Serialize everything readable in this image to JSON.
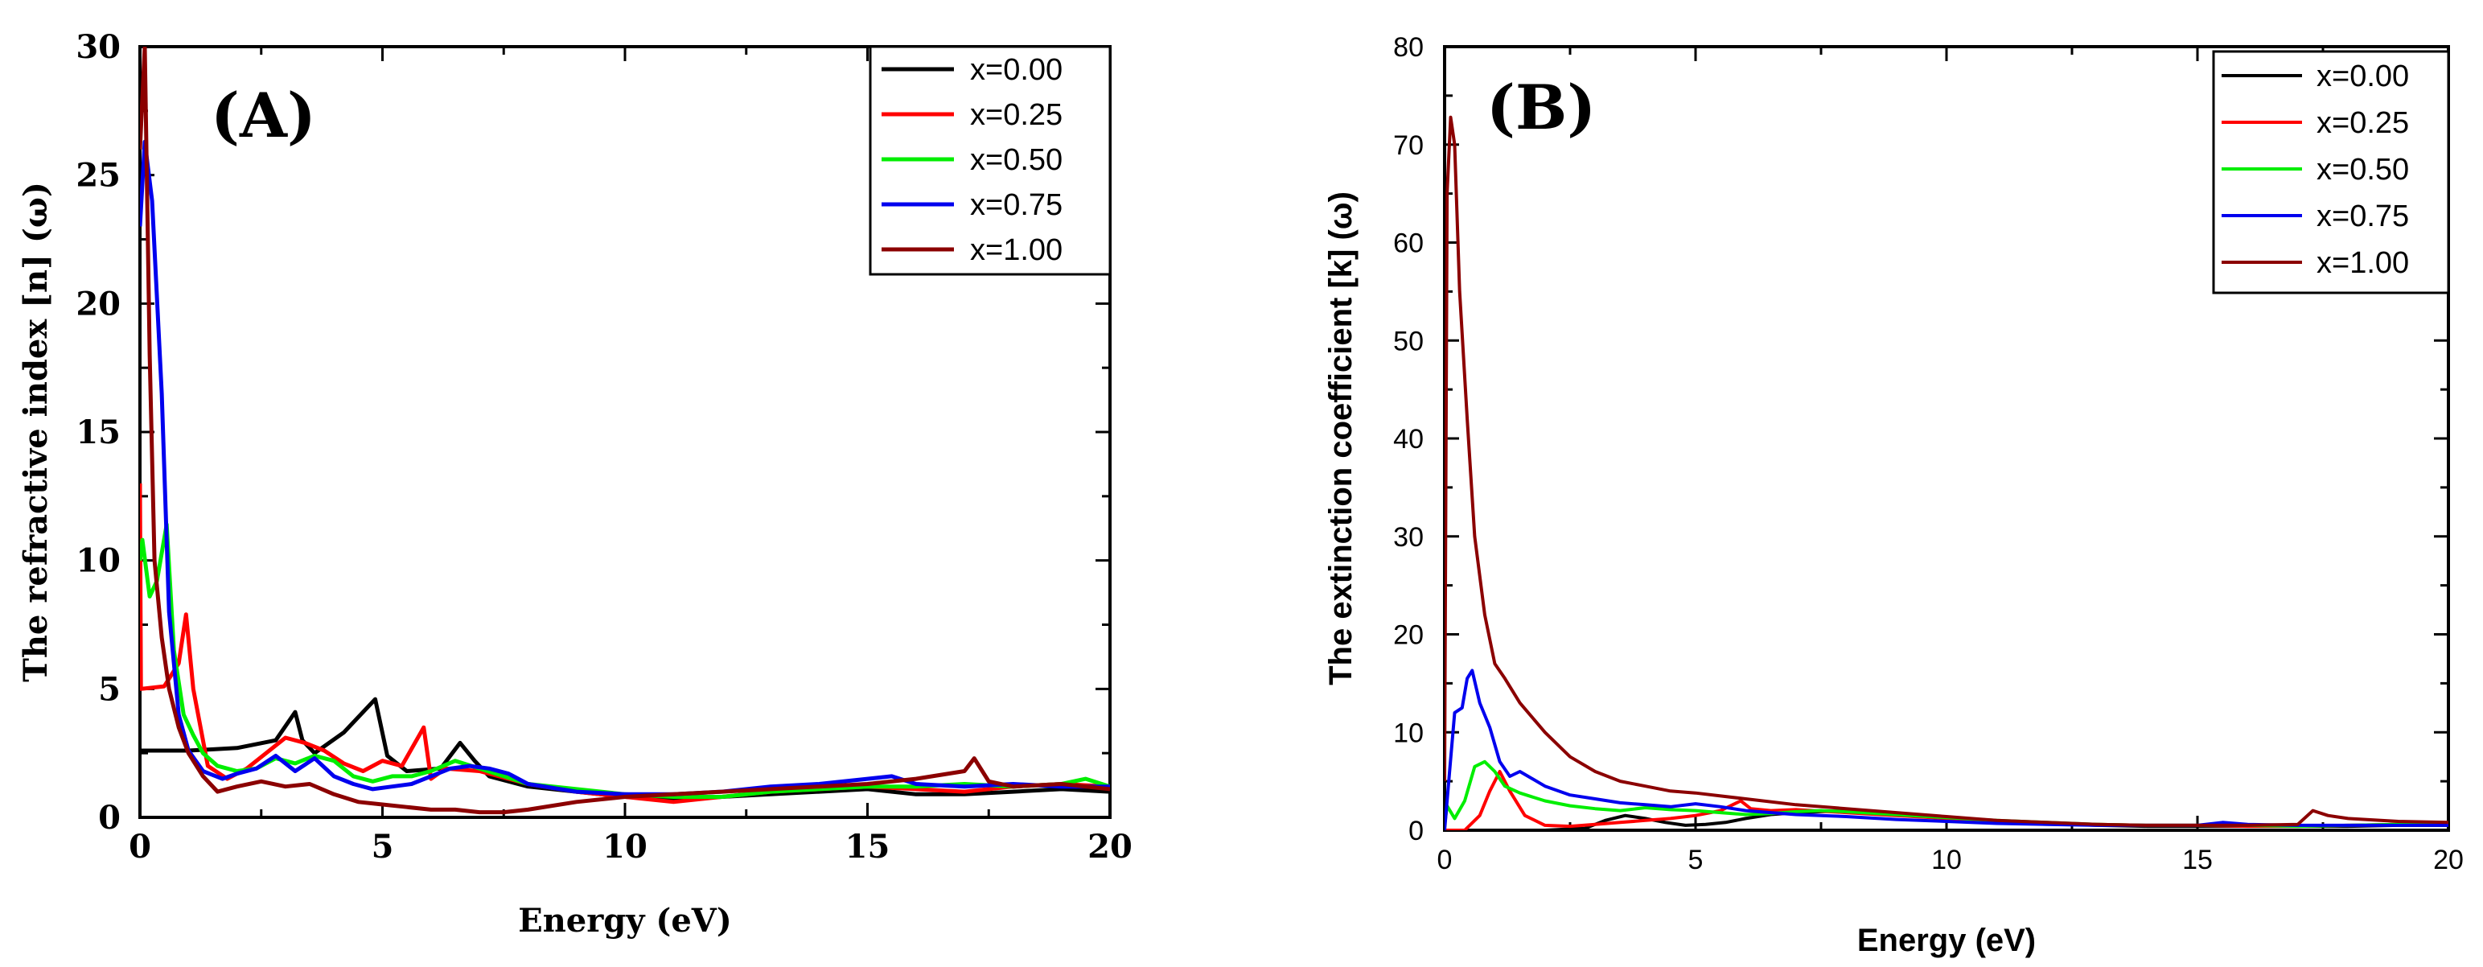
{
  "chart_data": [
    {
      "type": "line",
      "panel_label": "(A)",
      "title": "",
      "xlabel": "Energy (eV)",
      "ylabel": "The refractive index [n] (ω)",
      "xlim": [
        0,
        20
      ],
      "ylim": [
        0,
        30
      ],
      "xticks": [
        0,
        5,
        10,
        15,
        20
      ],
      "yticks": [
        0,
        5,
        10,
        15,
        20,
        25,
        30
      ],
      "legend_position": "top-right",
      "grid": false,
      "series": [
        {
          "name": "x=0.00",
          "color": "#000000",
          "x": [
            0,
            1,
            2,
            2.8,
            3.2,
            3.35,
            3.6,
            4.2,
            4.85,
            5.1,
            5.5,
            6.2,
            6.6,
            6.9,
            7.2,
            8,
            9,
            10,
            11,
            12,
            13,
            14,
            15,
            16,
            17,
            18,
            19,
            20
          ],
          "y": [
            2.6,
            2.6,
            2.7,
            3.0,
            4.1,
            3.0,
            2.5,
            3.3,
            4.6,
            2.4,
            1.8,
            1.9,
            2.9,
            2.2,
            1.6,
            1.2,
            1.0,
            0.8,
            0.7,
            0.8,
            0.9,
            1.0,
            1.1,
            0.9,
            0.9,
            1.0,
            1.1,
            1.0
          ]
        },
        {
          "name": "x=0.25",
          "color": "#ff0000",
          "x": [
            0,
            0.02,
            0.5,
            0.8,
            0.95,
            1.1,
            1.4,
            1.8,
            2.2,
            2.6,
            3.0,
            3.4,
            3.8,
            4.2,
            4.6,
            5.0,
            5.4,
            5.85,
            6.0,
            6.3,
            7,
            8,
            9,
            10,
            11,
            12,
            13,
            14,
            15,
            16,
            17,
            18,
            19,
            20
          ],
          "y": [
            13.0,
            5.0,
            5.1,
            6.0,
            7.9,
            5.0,
            2.0,
            1.5,
            1.9,
            2.5,
            3.1,
            2.9,
            2.6,
            2.1,
            1.8,
            2.2,
            2.0,
            3.5,
            1.5,
            1.9,
            1.8,
            1.3,
            1.0,
            0.8,
            0.6,
            0.8,
            1.0,
            1.1,
            1.2,
            1.1,
            1.0,
            1.2,
            1.3,
            1.2
          ]
        },
        {
          "name": "x=0.50",
          "color": "#00ee00",
          "x": [
            0,
            0.05,
            0.2,
            0.35,
            0.55,
            0.7,
            0.9,
            1.1,
            1.3,
            1.6,
            2.0,
            2.4,
            2.8,
            3.2,
            3.6,
            4.0,
            4.4,
            4.8,
            5.2,
            5.6,
            6.0,
            6.5,
            7.0,
            7.5,
            8,
            9,
            10,
            11,
            12,
            13,
            14,
            15,
            16,
            17,
            18,
            19,
            19.5,
            20
          ],
          "y": [
            10.0,
            10.8,
            8.6,
            9.2,
            11.4,
            6.5,
            4.0,
            3.2,
            2.5,
            2.0,
            1.8,
            1.9,
            2.3,
            2.1,
            2.4,
            2.2,
            1.6,
            1.4,
            1.6,
            1.6,
            1.8,
            2.2,
            1.9,
            1.6,
            1.3,
            1.1,
            0.9,
            0.8,
            0.8,
            1.0,
            1.1,
            1.2,
            1.2,
            1.3,
            1.2,
            1.3,
            1.5,
            1.2
          ]
        },
        {
          "name": "x=0.75",
          "color": "#0000ee",
          "x": [
            0,
            0.1,
            0.25,
            0.45,
            0.6,
            0.8,
            1.0,
            1.3,
            1.7,
            2.0,
            2.4,
            2.8,
            3.2,
            3.6,
            4.0,
            4.4,
            4.8,
            5.2,
            5.6,
            6.0,
            6.4,
            6.8,
            7.2,
            7.6,
            8,
            9,
            10,
            11,
            12,
            13,
            14,
            15,
            15.5,
            16,
            17,
            18,
            19,
            20
          ],
          "y": [
            23.0,
            26.3,
            24.0,
            16.5,
            8.0,
            4.0,
            2.6,
            1.8,
            1.5,
            1.7,
            1.9,
            2.4,
            1.8,
            2.3,
            1.6,
            1.3,
            1.1,
            1.2,
            1.3,
            1.6,
            1.9,
            2.0,
            1.9,
            1.7,
            1.3,
            1.0,
            0.9,
            0.9,
            1.0,
            1.2,
            1.3,
            1.5,
            1.6,
            1.3,
            1.2,
            1.3,
            1.2,
            1.2
          ]
        },
        {
          "name": "x=1.00",
          "color": "#8b0000",
          "x": [
            0,
            0.1,
            0.2,
            0.3,
            0.45,
            0.6,
            0.8,
            1.0,
            1.3,
            1.6,
            2.0,
            2.5,
            3.0,
            3.5,
            4.0,
            4.5,
            5.0,
            5.5,
            6.0,
            6.5,
            7.0,
            7.5,
            8.0,
            9,
            10,
            11,
            12,
            13,
            14,
            15,
            16,
            17,
            17.2,
            17.5,
            18,
            19,
            20
          ],
          "y": [
            26.0,
            30.0,
            18.0,
            10.0,
            7.0,
            5.0,
            3.5,
            2.5,
            1.6,
            1.0,
            1.2,
            1.4,
            1.2,
            1.3,
            0.9,
            0.6,
            0.5,
            0.4,
            0.3,
            0.3,
            0.2,
            0.2,
            0.3,
            0.6,
            0.8,
            0.9,
            1.0,
            1.1,
            1.2,
            1.3,
            1.5,
            1.8,
            2.3,
            1.4,
            1.2,
            1.3,
            1.1
          ]
        }
      ]
    },
    {
      "type": "line",
      "panel_label": "(B)",
      "title": "",
      "xlabel": "Energy (eV)",
      "ylabel": "The extinction coefficient [k] (ω)",
      "xlim": [
        0,
        20
      ],
      "ylim": [
        0,
        80
      ],
      "xticks": [
        0,
        5,
        10,
        15,
        20
      ],
      "yticks": [
        0,
        10,
        20,
        30,
        40,
        50,
        60,
        70,
        80
      ],
      "legend_position": "top-right",
      "grid": false,
      "series": [
        {
          "name": "x=0.00",
          "color": "#000000",
          "x": [
            0,
            2,
            2.8,
            3.2,
            3.6,
            4.0,
            4.4,
            4.8,
            5.2,
            5.6,
            6.0,
            6.5,
            7.0,
            7.5,
            8,
            9,
            10,
            11,
            12,
            13,
            14,
            15,
            16,
            17,
            18,
            19,
            20
          ],
          "y": [
            0,
            0,
            0.2,
            1.0,
            1.5,
            1.2,
            0.8,
            0.5,
            0.6,
            0.8,
            1.2,
            1.6,
            1.8,
            1.9,
            2.0,
            1.6,
            1.2,
            0.9,
            0.7,
            0.5,
            0.4,
            0.4,
            0.4,
            0.4,
            0.4,
            0.5,
            0.5
          ]
        },
        {
          "name": "x=0.25",
          "color": "#ff0000",
          "x": [
            0,
            0.4,
            0.7,
            0.9,
            1.1,
            1.3,
            1.6,
            2.0,
            2.5,
            3.0,
            3.5,
            4.0,
            4.5,
            5.0,
            5.5,
            5.9,
            6.1,
            6.5,
            7,
            8,
            9,
            10,
            11,
            12,
            13,
            14,
            15,
            16,
            17,
            18,
            19,
            20
          ],
          "y": [
            0,
            0,
            1.5,
            4.0,
            6.0,
            4.0,
            1.5,
            0.5,
            0.4,
            0.6,
            0.8,
            1.0,
            1.2,
            1.5,
            2.0,
            3.0,
            2.2,
            2.0,
            2.1,
            1.8,
            1.5,
            1.2,
            0.9,
            0.7,
            0.6,
            0.5,
            0.5,
            0.4,
            0.4,
            0.5,
            0.6,
            0.6
          ]
        },
        {
          "name": "x=0.50",
          "color": "#00ee00",
          "x": [
            0,
            0.05,
            0.2,
            0.4,
            0.6,
            0.8,
            1.0,
            1.2,
            1.5,
            2.0,
            2.5,
            3.0,
            3.5,
            4.0,
            4.5,
            5.0,
            5.5,
            6.0,
            6.5,
            7.0,
            7.5,
            8,
            9,
            10,
            11,
            12,
            13,
            14,
            15,
            16,
            17,
            18,
            19,
            20
          ],
          "y": [
            0.5,
            2.5,
            1.2,
            3.0,
            6.5,
            7.0,
            6.0,
            4.5,
            3.8,
            3.0,
            2.5,
            2.2,
            2.0,
            2.3,
            2.1,
            2.0,
            1.8,
            1.6,
            1.7,
            1.9,
            2.0,
            1.9,
            1.6,
            1.3,
            1.0,
            0.8,
            0.6,
            0.5,
            0.5,
            0.5,
            0.4,
            0.5,
            0.6,
            0.6
          ]
        },
        {
          "name": "x=0.75",
          "color": "#0000ee",
          "x": [
            0,
            0.1,
            0.2,
            0.35,
            0.45,
            0.55,
            0.7,
            0.9,
            1.1,
            1.3,
            1.5,
            2.0,
            2.5,
            3.0,
            3.5,
            4.0,
            4.5,
            5.0,
            5.5,
            6.0,
            6.5,
            7.0,
            7.5,
            8,
            9,
            10,
            11,
            12,
            13,
            14,
            15,
            15.5,
            16,
            17,
            18,
            19,
            20
          ],
          "y": [
            0,
            6.0,
            12.0,
            12.5,
            15.5,
            16.3,
            13.0,
            10.5,
            7.0,
            5.5,
            6.0,
            4.5,
            3.6,
            3.2,
            2.8,
            2.6,
            2.4,
            2.7,
            2.4,
            2.0,
            1.8,
            1.6,
            1.5,
            1.4,
            1.1,
            0.9,
            0.7,
            0.6,
            0.5,
            0.5,
            0.5,
            0.8,
            0.6,
            0.5,
            0.5,
            0.5,
            0.5
          ]
        },
        {
          "name": "x=1.00",
          "color": "#8b0000",
          "x": [
            0,
            0.05,
            0.12,
            0.2,
            0.3,
            0.45,
            0.6,
            0.8,
            1.0,
            1.2,
            1.5,
            2.0,
            2.5,
            3.0,
            3.5,
            4.0,
            4.5,
            5.0,
            5.5,
            6.0,
            7.0,
            8.0,
            9,
            10,
            11,
            12,
            13,
            14,
            15,
            16,
            17,
            17.3,
            17.6,
            18,
            19,
            20
          ],
          "y": [
            5.0,
            65.0,
            72.8,
            70.0,
            55.0,
            42.0,
            30.0,
            22.0,
            17.0,
            15.5,
            13.0,
            10.0,
            7.5,
            6.0,
            5.0,
            4.5,
            4.0,
            3.8,
            3.5,
            3.2,
            2.6,
            2.2,
            1.8,
            1.4,
            1.0,
            0.8,
            0.6,
            0.5,
            0.5,
            0.5,
            0.6,
            2.0,
            1.5,
            1.2,
            0.9,
            0.8
          ]
        }
      ]
    }
  ]
}
